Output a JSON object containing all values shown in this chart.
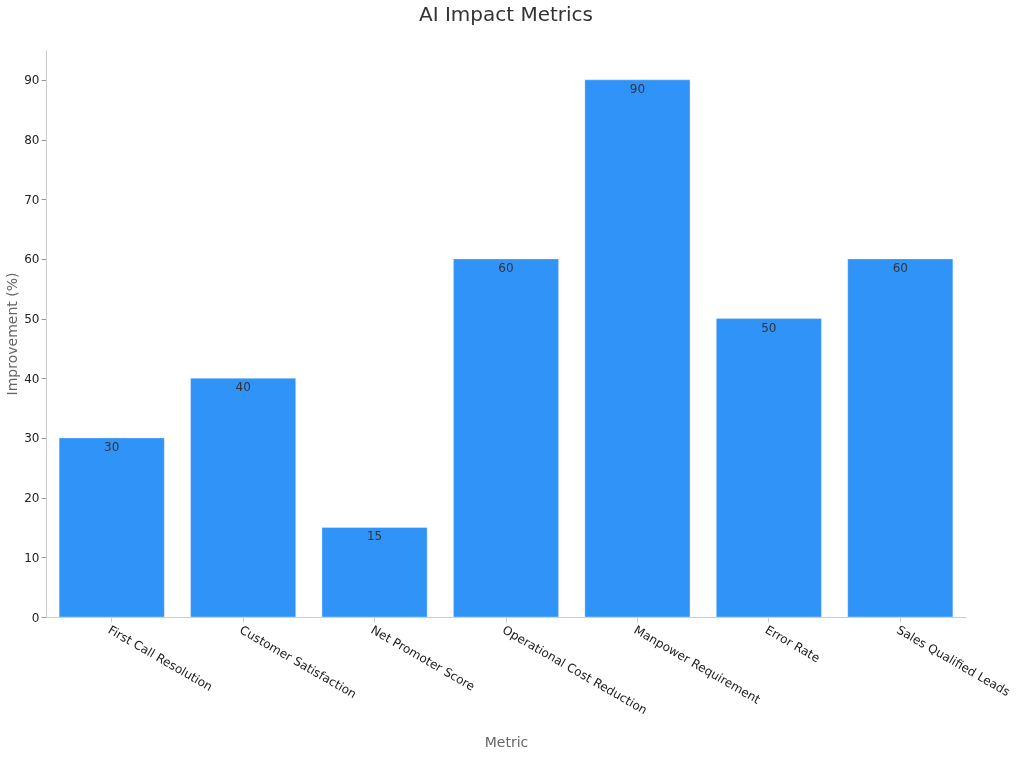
{
  "chart_data": {
    "type": "bar",
    "title": "AI Impact Metrics",
    "xlabel": "Metric",
    "ylabel": "Improvement (%)",
    "categories": [
      "First Call Resolution",
      "Customer Satisfaction",
      "Net Promoter Score",
      "Operational Cost Reduction",
      "Manpower Requirement",
      "Error Rate",
      "Sales Qualified Leads"
    ],
    "values": [
      30,
      40,
      15,
      60,
      90,
      50,
      60
    ],
    "color": "#3093f8",
    "ylim": [
      0,
      95
    ],
    "yticks": [
      0,
      10,
      20,
      30,
      40,
      50,
      60,
      70,
      80,
      90
    ],
    "grid": false,
    "data_labels": true
  }
}
